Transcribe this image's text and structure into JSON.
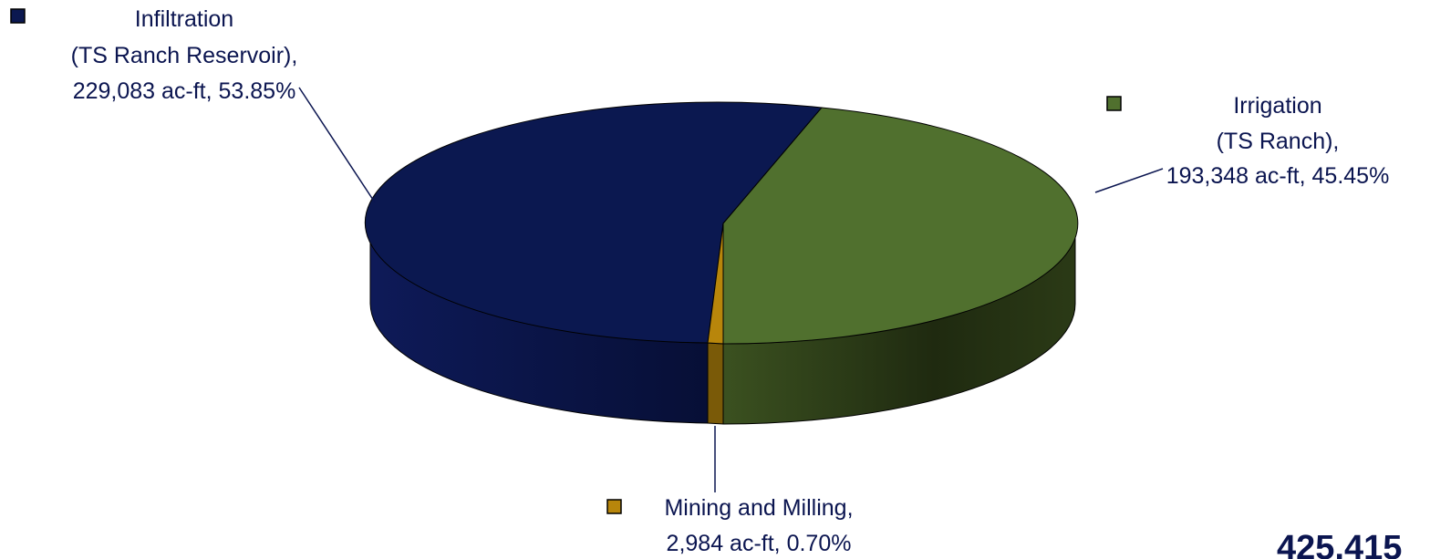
{
  "chart_data": {
    "type": "pie",
    "title": "",
    "unit": "ac-ft",
    "slices": [
      {
        "name": "Infiltration (TS Ranch Reservoir)",
        "value": 229083,
        "percent": 53.85,
        "color": "#0b1850",
        "label_lines": [
          "Infiltration",
          "(TS Ranch Reservoir),",
          "229,083 ac-ft, 53.85%"
        ]
      },
      {
        "name": "Irrigation (TS Ranch)",
        "value": 193348,
        "percent": 45.45,
        "color": "#50702e",
        "label_lines": [
          "Irrigation",
          "(TS Ranch),",
          "193,348 ac-ft, 45.45%"
        ]
      },
      {
        "name": "Mining and Milling",
        "value": 2984,
        "percent": 0.7,
        "color": "#b8860b",
        "label_lines": [
          "Mining and Milling,",
          "2,984 ac-ft, 0.70%"
        ]
      }
    ],
    "total_label": "425,415",
    "legend": "inline-with-labels"
  }
}
